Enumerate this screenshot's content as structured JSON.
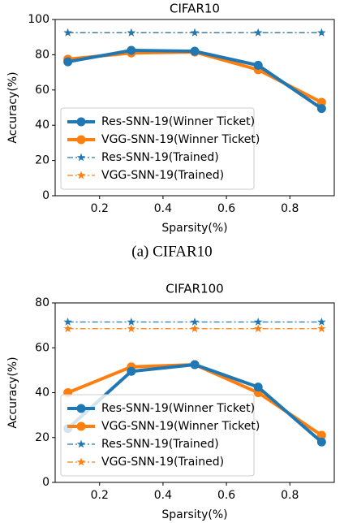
{
  "chart_data": [
    {
      "type": "line",
      "title": "CIFAR10",
      "caption": "(a) CIFAR10",
      "xlabel": "Sparsity(%)",
      "ylabel": "Accuracy(%)",
      "x": [
        0.1,
        0.3,
        0.5,
        0.7,
        0.9
      ],
      "xlim": [
        0.06,
        0.94
      ],
      "xticks": [
        0.2,
        0.4,
        0.6,
        0.8
      ],
      "ylim": [
        0,
        100
      ],
      "yticks": [
        0,
        20,
        40,
        60,
        80,
        100
      ],
      "legend": "lower left",
      "series": [
        {
          "name": "Res-SNN-19(Winner Ticket)",
          "color": "#1f77b4",
          "linestyle": "solid",
          "marker": "circle",
          "values": [
            76,
            82.5,
            82,
            74,
            49.5
          ]
        },
        {
          "name": "VGG-SNN-19(Winner Ticket)",
          "color": "#ff7f0e",
          "linestyle": "solid",
          "marker": "circle",
          "values": [
            77.5,
            81,
            81.5,
            71.5,
            53
          ]
        },
        {
          "name": "Res-SNN-19(Trained)",
          "color": "#1f77b4",
          "linestyle": "dashdot",
          "marker": "star",
          "values": [
            92.5,
            92.5,
            92.5,
            92.5,
            92.5
          ]
        },
        {
          "name": "VGG-SNN-19(Trained)",
          "color": "#ff7f0e",
          "linestyle": "dashdot",
          "marker": "star",
          "values": [
            92.5,
            92.5,
            92.5,
            92.5,
            92.5
          ]
        }
      ]
    },
    {
      "type": "line",
      "title": "CIFAR100",
      "xlabel": "Sparsity(%)",
      "ylabel": "Accuracy(%)",
      "x": [
        0.1,
        0.3,
        0.5,
        0.7,
        0.9
      ],
      "xlim": [
        0.06,
        0.94
      ],
      "xticks": [
        0.2,
        0.4,
        0.6,
        0.8
      ],
      "ylim": [
        0,
        80
      ],
      "yticks": [
        0,
        20,
        40,
        60,
        80
      ],
      "legend": "lower left",
      "series": [
        {
          "name": "Res-SNN-19(Winner Ticket)",
          "color": "#1f77b4",
          "linestyle": "solid",
          "marker": "circle",
          "values": [
            24,
            49.5,
            52.5,
            42.5,
            18
          ]
        },
        {
          "name": "VGG-SNN-19(Winner Ticket)",
          "color": "#ff7f0e",
          "linestyle": "solid",
          "marker": "circle",
          "values": [
            40,
            51.5,
            52.5,
            40,
            21
          ]
        },
        {
          "name": "Res-SNN-19(Trained)",
          "color": "#1f77b4",
          "linestyle": "dashdot",
          "marker": "star",
          "values": [
            71.5,
            71.5,
            71.5,
            71.5,
            71.5
          ]
        },
        {
          "name": "VGG-SNN-19(Trained)",
          "color": "#ff7f0e",
          "linestyle": "dashdot",
          "marker": "star",
          "values": [
            68.5,
            68.5,
            68.5,
            68.5,
            68.5
          ]
        }
      ]
    }
  ]
}
